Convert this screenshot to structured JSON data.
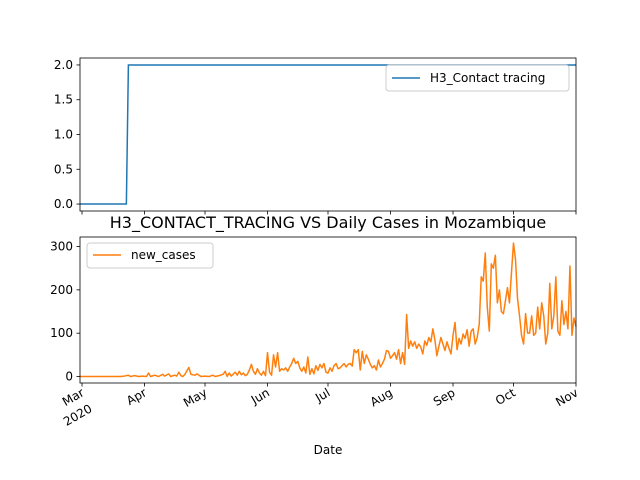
{
  "chart_data": [
    {
      "type": "line",
      "title": "",
      "xlabel": "",
      "ylabel": "",
      "ylim": [
        -0.1,
        2.1
      ],
      "y_ticks": [
        0.0,
        0.5,
        1.0,
        1.5,
        2.0
      ],
      "y_tick_labels": [
        "0.0",
        "0.5",
        "1.0",
        "1.5",
        "2.0"
      ],
      "legend_position": "top-right",
      "series": [
        {
          "name": "H3_Contact tracing",
          "color": "#1f77b4",
          "points": [
            [
              "2020-02-29",
              0
            ],
            [
              "2020-03-23",
              0
            ],
            [
              "2020-03-24",
              2
            ],
            [
              "2020-11-01",
              2
            ]
          ]
        }
      ]
    },
    {
      "type": "line",
      "title": "H3_CONTACT_TRACING VS Daily Cases in Mozambique",
      "xlabel": "Date",
      "ylabel": "",
      "ylim": [
        -15,
        322
      ],
      "y_ticks": [
        0,
        100,
        200,
        300
      ],
      "y_tick_labels": [
        "0",
        "100",
        "200",
        "300"
      ],
      "x_range": [
        "2020-02-29",
        "2020-11-01"
      ],
      "x_ticks": [
        {
          "date": "2020-03-01",
          "label": "Mar",
          "sublabel": "2020"
        },
        {
          "date": "2020-04-01",
          "label": "Apr"
        },
        {
          "date": "2020-05-01",
          "label": "May"
        },
        {
          "date": "2020-06-01",
          "label": "Jun"
        },
        {
          "date": "2020-07-01",
          "label": "Jul"
        },
        {
          "date": "2020-08-01",
          "label": "Aug"
        },
        {
          "date": "2020-09-01",
          "label": "Sep"
        },
        {
          "date": "2020-10-01",
          "label": "Oct"
        },
        {
          "date": "2020-11-01",
          "label": "Nov"
        }
      ],
      "legend_position": "top-left",
      "series": [
        {
          "name": "new_cases",
          "color": "#ff7f0e",
          "points": [
            [
              "2020-02-29",
              0
            ],
            [
              "2020-03-05",
              0
            ],
            [
              "2020-03-10",
              0
            ],
            [
              "2020-03-15",
              0
            ],
            [
              "2020-03-20",
              0
            ],
            [
              "2020-03-22",
              1
            ],
            [
              "2020-03-24",
              3
            ],
            [
              "2020-03-25",
              0
            ],
            [
              "2020-03-27",
              2
            ],
            [
              "2020-03-29",
              0
            ],
            [
              "2020-03-31",
              1
            ],
            [
              "2020-04-02",
              0
            ],
            [
              "2020-04-03",
              8
            ],
            [
              "2020-04-04",
              0
            ],
            [
              "2020-04-06",
              3
            ],
            [
              "2020-04-08",
              0
            ],
            [
              "2020-04-10",
              5
            ],
            [
              "2020-04-11",
              1
            ],
            [
              "2020-04-13",
              6
            ],
            [
              "2020-04-14",
              0
            ],
            [
              "2020-04-16",
              3
            ],
            [
              "2020-04-17",
              1
            ],
            [
              "2020-04-18",
              10
            ],
            [
              "2020-04-19",
              2
            ],
            [
              "2020-04-20",
              0
            ],
            [
              "2020-04-21",
              5
            ],
            [
              "2020-04-23",
              21
            ],
            [
              "2020-04-24",
              5
            ],
            [
              "2020-04-26",
              3
            ],
            [
              "2020-04-27",
              6
            ],
            [
              "2020-04-29",
              0
            ],
            [
              "2020-05-01",
              1
            ],
            [
              "2020-05-03",
              0
            ],
            [
              "2020-05-05",
              3
            ],
            [
              "2020-05-06",
              0
            ],
            [
              "2020-05-08",
              2
            ],
            [
              "2020-05-10",
              5
            ],
            [
              "2020-05-11",
              12
            ],
            [
              "2020-05-12",
              0
            ],
            [
              "2020-05-13",
              8
            ],
            [
              "2020-05-14",
              1
            ],
            [
              "2020-05-16",
              10
            ],
            [
              "2020-05-17",
              3
            ],
            [
              "2020-05-18",
              12
            ],
            [
              "2020-05-19",
              4
            ],
            [
              "2020-05-20",
              8
            ],
            [
              "2020-05-21",
              2
            ],
            [
              "2020-05-22",
              5
            ],
            [
              "2020-05-23",
              15
            ],
            [
              "2020-05-24",
              28
            ],
            [
              "2020-05-25",
              12
            ],
            [
              "2020-05-26",
              5
            ],
            [
              "2020-05-27",
              18
            ],
            [
              "2020-05-28",
              8
            ],
            [
              "2020-05-29",
              3
            ],
            [
              "2020-05-30",
              12
            ],
            [
              "2020-05-31",
              2
            ],
            [
              "2020-06-01",
              55
            ],
            [
              "2020-06-02",
              10
            ],
            [
              "2020-06-03",
              3
            ],
            [
              "2020-06-04",
              50
            ],
            [
              "2020-06-05",
              22
            ],
            [
              "2020-06-06",
              55
            ],
            [
              "2020-06-07",
              12
            ],
            [
              "2020-06-08",
              18
            ],
            [
              "2020-06-09",
              15
            ],
            [
              "2020-06-10",
              20
            ],
            [
              "2020-06-11",
              12
            ],
            [
              "2020-06-12",
              22
            ],
            [
              "2020-06-13",
              30
            ],
            [
              "2020-06-14",
              42
            ],
            [
              "2020-06-15",
              30
            ],
            [
              "2020-06-16",
              35
            ],
            [
              "2020-06-17",
              20
            ],
            [
              "2020-06-18",
              12
            ],
            [
              "2020-06-19",
              22
            ],
            [
              "2020-06-20",
              8
            ],
            [
              "2020-06-21",
              45
            ],
            [
              "2020-06-22",
              5
            ],
            [
              "2020-06-23",
              18
            ],
            [
              "2020-06-24",
              6
            ],
            [
              "2020-06-25",
              25
            ],
            [
              "2020-06-26",
              14
            ],
            [
              "2020-06-27",
              28
            ],
            [
              "2020-06-28",
              20
            ],
            [
              "2020-06-29",
              30
            ],
            [
              "2020-06-30",
              10
            ],
            [
              "2020-07-01",
              8
            ],
            [
              "2020-07-02",
              20
            ],
            [
              "2020-07-03",
              12
            ],
            [
              "2020-07-04",
              25
            ],
            [
              "2020-07-05",
              30
            ],
            [
              "2020-07-06",
              18
            ],
            [
              "2020-07-07",
              20
            ],
            [
              "2020-07-08",
              25
            ],
            [
              "2020-07-09",
              30
            ],
            [
              "2020-07-10",
              22
            ],
            [
              "2020-07-11",
              28
            ],
            [
              "2020-07-12",
              30
            ],
            [
              "2020-07-13",
              24
            ],
            [
              "2020-07-14",
              62
            ],
            [
              "2020-07-15",
              55
            ],
            [
              "2020-07-16",
              62
            ],
            [
              "2020-07-17",
              15
            ],
            [
              "2020-07-18",
              58
            ],
            [
              "2020-07-19",
              30
            ],
            [
              "2020-07-20",
              50
            ],
            [
              "2020-07-21",
              40
            ],
            [
              "2020-07-22",
              28
            ],
            [
              "2020-07-23",
              20
            ],
            [
              "2020-07-24",
              25
            ],
            [
              "2020-07-25",
              15
            ],
            [
              "2020-07-26",
              38
            ],
            [
              "2020-07-27",
              22
            ],
            [
              "2020-07-28",
              30
            ],
            [
              "2020-07-29",
              40
            ],
            [
              "2020-07-30",
              60
            ],
            [
              "2020-07-31",
              58
            ],
            [
              "2020-08-01",
              42
            ],
            [
              "2020-08-02",
              48
            ],
            [
              "2020-08-03",
              55
            ],
            [
              "2020-08-04",
              40
            ],
            [
              "2020-08-05",
              62
            ],
            [
              "2020-08-06",
              30
            ],
            [
              "2020-08-07",
              55
            ],
            [
              "2020-08-08",
              28
            ],
            [
              "2020-08-09",
              143
            ],
            [
              "2020-08-10",
              65
            ],
            [
              "2020-08-11",
              82
            ],
            [
              "2020-08-12",
              70
            ],
            [
              "2020-08-13",
              80
            ],
            [
              "2020-08-14",
              65
            ],
            [
              "2020-08-15",
              75
            ],
            [
              "2020-08-16",
              68
            ],
            [
              "2020-08-17",
              52
            ],
            [
              "2020-08-18",
              82
            ],
            [
              "2020-08-19",
              72
            ],
            [
              "2020-08-20",
              90
            ],
            [
              "2020-08-21",
              80
            ],
            [
              "2020-08-22",
              110
            ],
            [
              "2020-08-23",
              85
            ],
            [
              "2020-08-24",
              48
            ],
            [
              "2020-08-25",
              70
            ],
            [
              "2020-08-26",
              90
            ],
            [
              "2020-08-27",
              75
            ],
            [
              "2020-08-28",
              60
            ],
            [
              "2020-08-29",
              80
            ],
            [
              "2020-08-30",
              65
            ],
            [
              "2020-08-31",
              52
            ],
            [
              "2020-09-01",
              95
            ],
            [
              "2020-09-02",
              125
            ],
            [
              "2020-09-03",
              62
            ],
            [
              "2020-09-04",
              88
            ],
            [
              "2020-09-05",
              75
            ],
            [
              "2020-09-06",
              98
            ],
            [
              "2020-09-07",
              88
            ],
            [
              "2020-09-08",
              108
            ],
            [
              "2020-09-09",
              70
            ],
            [
              "2020-09-10",
              105
            ],
            [
              "2020-09-11",
              110
            ],
            [
              "2020-09-12",
              75
            ],
            [
              "2020-09-13",
              90
            ],
            [
              "2020-09-14",
              120
            ],
            [
              "2020-09-15",
              230
            ],
            [
              "2020-09-16",
              220
            ],
            [
              "2020-09-17",
              285
            ],
            [
              "2020-09-18",
              160
            ],
            [
              "2020-09-19",
              105
            ],
            [
              "2020-09-20",
              260
            ],
            [
              "2020-09-21",
              250
            ],
            [
              "2020-09-22",
              280
            ],
            [
              "2020-09-23",
              170
            ],
            [
              "2020-09-24",
              200
            ],
            [
              "2020-09-25",
              150
            ],
            [
              "2020-09-26",
              145
            ],
            [
              "2020-09-27",
              175
            ],
            [
              "2020-09-28",
              205
            ],
            [
              "2020-09-29",
              170
            ],
            [
              "2020-09-30",
              240
            ],
            [
              "2020-10-01",
              308
            ],
            [
              "2020-10-02",
              270
            ],
            [
              "2020-10-03",
              180
            ],
            [
              "2020-10-04",
              140
            ],
            [
              "2020-10-05",
              95
            ],
            [
              "2020-10-06",
              75
            ],
            [
              "2020-10-07",
              145
            ],
            [
              "2020-10-08",
              100
            ],
            [
              "2020-10-09",
              100
            ],
            [
              "2020-10-10",
              140
            ],
            [
              "2020-10-11",
              95
            ],
            [
              "2020-10-12",
              100
            ],
            [
              "2020-10-13",
              160
            ],
            [
              "2020-10-14",
              110
            ],
            [
              "2020-10-15",
              170
            ],
            [
              "2020-10-16",
              140
            ],
            [
              "2020-10-17",
              75
            ],
            [
              "2020-10-18",
              100
            ],
            [
              "2020-10-19",
              215
            ],
            [
              "2020-10-20",
              110
            ],
            [
              "2020-10-21",
              140
            ],
            [
              "2020-10-22",
              230
            ],
            [
              "2020-10-23",
              105
            ],
            [
              "2020-10-24",
              95
            ],
            [
              "2020-10-25",
              175
            ],
            [
              "2020-10-26",
              120
            ],
            [
              "2020-10-27",
              150
            ],
            [
              "2020-10-28",
              110
            ],
            [
              "2020-10-29",
              255
            ],
            [
              "2020-10-30",
              95
            ],
            [
              "2020-10-31",
              135
            ],
            [
              "2020-11-01",
              115
            ]
          ]
        }
      ]
    }
  ]
}
